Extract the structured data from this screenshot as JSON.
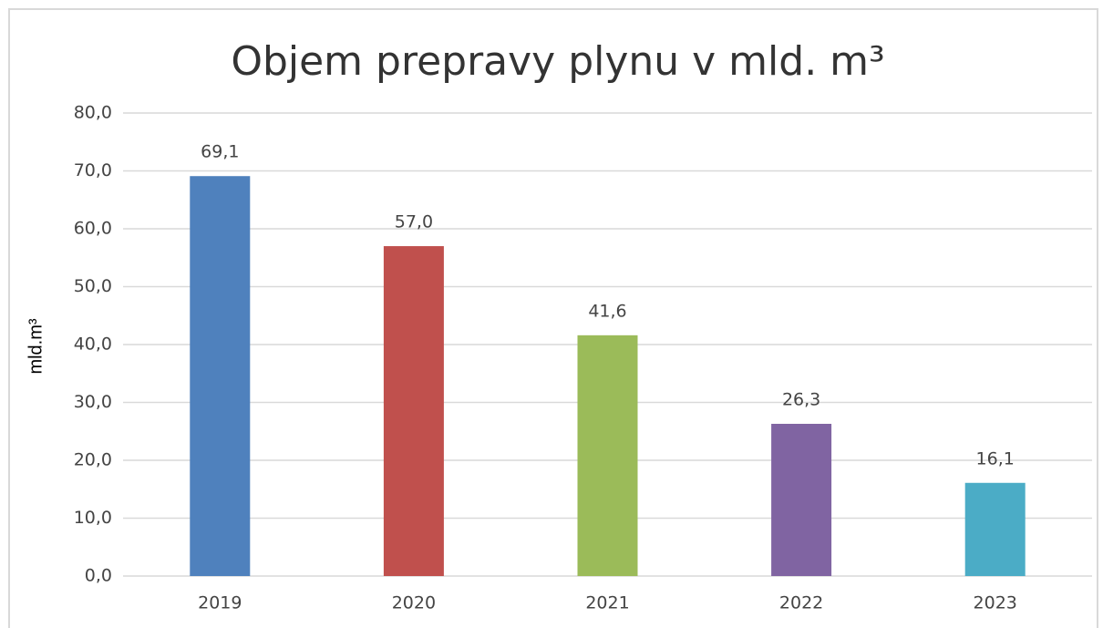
{
  "chart_data": {
    "type": "bar",
    "title": "Objem prepravy plynu v mld. m³",
    "y_label": "mld.m³",
    "categories": [
      "2019",
      "2020",
      "2021",
      "2022",
      "2023"
    ],
    "values": [
      69.1,
      57.0,
      41.6,
      26.3,
      16.1
    ],
    "value_labels": [
      "69,1",
      "57,0",
      "41,6",
      "26,3",
      "16,1"
    ],
    "colors": [
      "#4f81bd",
      "#c0504d",
      "#9bbb59",
      "#8064a2",
      "#4bacc6"
    ],
    "ylim": [
      0,
      80
    ],
    "yticks": [
      {
        "value": 0,
        "label": "0,0"
      },
      {
        "value": 10,
        "label": "10,0"
      },
      {
        "value": 20,
        "label": "20,0"
      },
      {
        "value": 30,
        "label": "30,0"
      },
      {
        "value": 40,
        "label": "40,0"
      },
      {
        "value": 50,
        "label": "50,0"
      },
      {
        "value": 60,
        "label": "60,0"
      },
      {
        "value": 70,
        "label": "70,0"
      },
      {
        "value": 80,
        "label": "80,0"
      }
    ],
    "grid": true
  }
}
